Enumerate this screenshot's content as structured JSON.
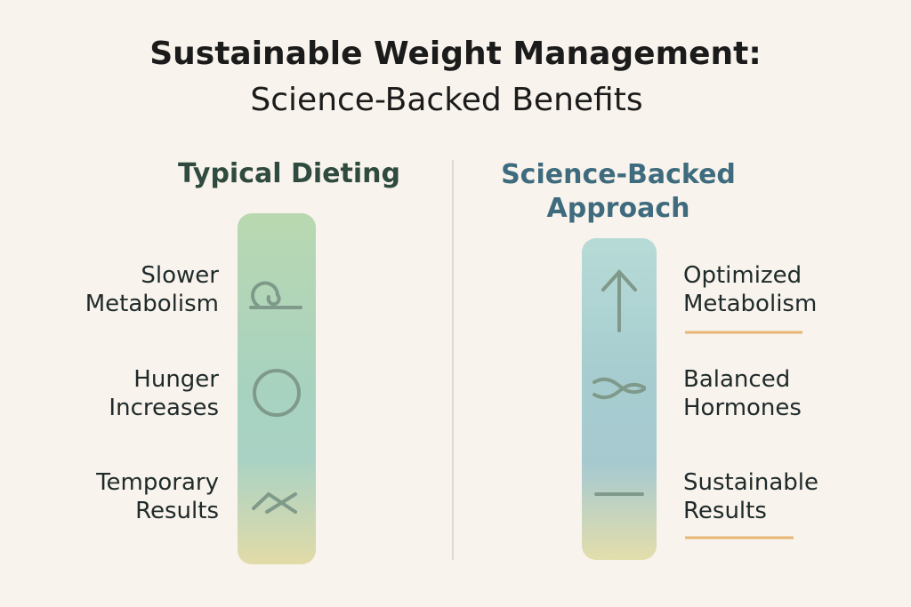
{
  "header": {
    "title": "Sustainable Weight Management:",
    "subtitle": "Science-Backed Benefits"
  },
  "left": {
    "heading": "Typical Dieting",
    "items": [
      [
        "Slower",
        "Metabolism"
      ],
      [
        "Hunger",
        "Increases"
      ],
      [
        "Temporary",
        "Results"
      ]
    ]
  },
  "right": {
    "heading": [
      "Science-Backed",
      "Approach"
    ],
    "items": [
      [
        "Optimized",
        "Metabolism"
      ],
      [
        "Balanced",
        "Hormones"
      ],
      [
        "Sustainable",
        "Results"
      ]
    ]
  }
}
